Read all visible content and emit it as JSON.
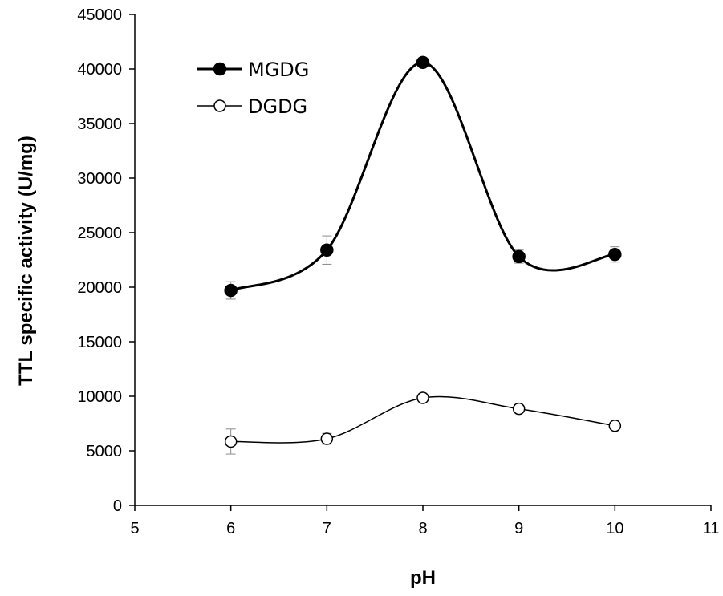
{
  "chart_data": {
    "type": "line",
    "xlabel": "pH",
    "ylabel": "TTL specific activity (U/mg)",
    "xlim": [
      5,
      11
    ],
    "ylim": [
      0,
      45000
    ],
    "xticks": [
      5,
      6,
      7,
      8,
      9,
      10,
      11
    ],
    "yticks": [
      0,
      5000,
      10000,
      15000,
      20000,
      25000,
      30000,
      35000,
      40000,
      45000
    ],
    "grid": false,
    "legend_position": "top-left",
    "series": [
      {
        "name": "MGDG",
        "marker": "filled-circle",
        "color": "#000000",
        "x": [
          6,
          7,
          8,
          9,
          10
        ],
        "y": [
          19700,
          23400,
          40600,
          22800,
          23000
        ],
        "error": [
          800,
          1300,
          300,
          600,
          700
        ]
      },
      {
        "name": "DGDG",
        "marker": "open-circle",
        "color": "#000000",
        "x": [
          6,
          7,
          8,
          9,
          10
        ],
        "y": [
          5850,
          6100,
          9850,
          8850,
          7300
        ],
        "error": [
          1150,
          500,
          200,
          200,
          200
        ]
      }
    ]
  }
}
